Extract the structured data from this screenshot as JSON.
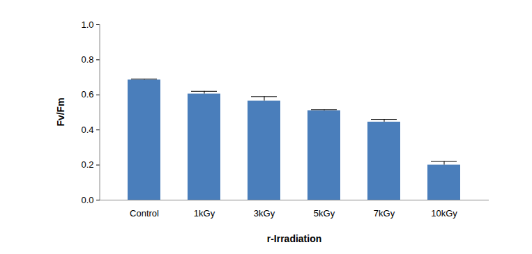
{
  "chart_data": {
    "type": "bar",
    "x_label": "r-Irradiation",
    "y_label": "Fv/Fm",
    "categories": [
      "Control",
      "1kGy",
      "3kGy",
      "5kGy",
      "7kGy",
      "10kGy"
    ],
    "values": [
      0.685,
      0.605,
      0.565,
      0.51,
      0.445,
      0.2
    ],
    "errors": [
      0.005,
      0.015,
      0.025,
      0.005,
      0.015,
      0.02
    ],
    "color": "#4a7ebb",
    "ylim": [
      0,
      1
    ],
    "yticks": [
      {
        "value": 0,
        "label": "0.0"
      },
      0.2,
      0.4,
      0.6,
      0.8,
      {
        "value": 1,
        "label": "1.0"
      }
    ],
    "grid": false
  }
}
